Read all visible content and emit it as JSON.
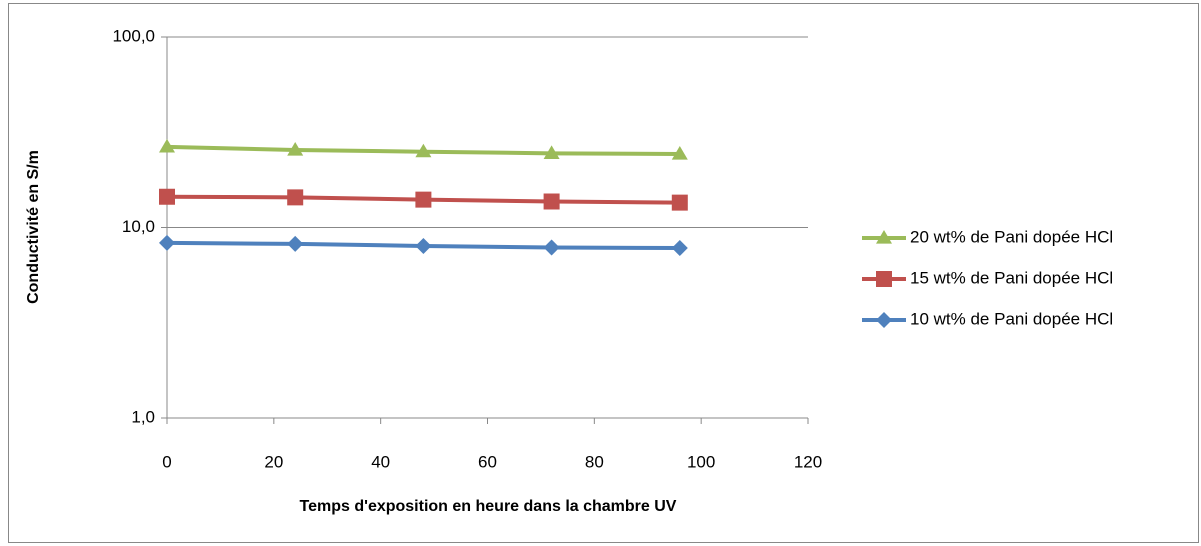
{
  "chart_data": {
    "type": "line",
    "xlabel": "Temps d'exposition en heure dans la chambre UV",
    "ylabel": "Conductivité en S/m",
    "x": [
      0,
      24,
      48,
      72,
      96
    ],
    "xlim": [
      0,
      120
    ],
    "xticks": [
      0,
      20,
      40,
      60,
      80,
      100,
      120
    ],
    "ylim": [
      1,
      100
    ],
    "yticks": [
      {
        "value": 1,
        "label": "1,0"
      },
      {
        "value": 10,
        "label": "10,0"
      },
      {
        "value": 100,
        "label": "100,0"
      }
    ],
    "log_y": true,
    "grid": true,
    "legend": "right",
    "series": [
      {
        "name": "20 wt% de Pani dopée HCl",
        "color": "#9bbb59",
        "marker": "triangle",
        "values": [
          26.5,
          25.5,
          25.0,
          24.5,
          24.3
        ]
      },
      {
        "name": "15 wt% de Pani dopée HCl",
        "color": "#c0504d",
        "marker": "square",
        "values": [
          14.5,
          14.4,
          14.0,
          13.7,
          13.5
        ]
      },
      {
        "name": "10 wt% de Pani dopée HCl",
        "color": "#4f81bd",
        "marker": "diamond",
        "values": [
          8.3,
          8.2,
          8.0,
          7.85,
          7.8
        ]
      }
    ]
  }
}
